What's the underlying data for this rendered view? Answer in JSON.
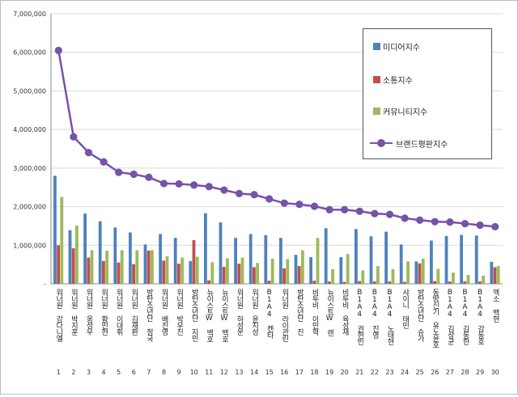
{
  "chart_data": {
    "type": "bar",
    "title": "",
    "xlabel": "",
    "ylabel": "",
    "ylim": [
      0,
      7000000
    ],
    "y_ticks": [
      "-",
      "1,000,000",
      "2,000,000",
      "3,000,000",
      "4,000,000",
      "5,000,000",
      "6,000,000",
      "7,000,000"
    ],
    "grid": true,
    "legend_position": "top-right",
    "categories": [
      "워너원 강다니엘",
      "워너원 박지훈",
      "워너원 옹성우",
      "워너원 황민현",
      "워너원 이대휘",
      "워너원 김재환",
      "방탄소년단 정국",
      "워너원 배진영",
      "워너원 박우진",
      "방탄소년단 지민",
      "뉴이스트W 백호",
      "뉴이스트W 백호",
      "워너원 하성운",
      "워너원 윤지성",
      "B1A4 켄타",
      "워너원 라이관린",
      "방탄소년단 진",
      "비투비 이민혁",
      "뉴이스트W 렌",
      "비투비 육성재",
      "B1A4 권현빈",
      "B1A4 진영",
      "B1A4 노태현",
      "샤이니 태민",
      "방탄소년단 슈가",
      "동방신기 유노윤호",
      "B1A4 김상균",
      "B1A4 김동한",
      "B1A4 강동호",
      "엑소 백현"
    ],
    "category_numbers": [
      "1",
      "2",
      "3",
      "4",
      "5",
      "6",
      "7",
      "8",
      "9",
      "10",
      "11",
      "12",
      "13",
      "14",
      "15",
      "16",
      "17",
      "18",
      "19",
      "20",
      "21",
      "22",
      "23",
      "24",
      "25",
      "26",
      "27",
      "28",
      "29",
      "30"
    ],
    "series": [
      {
        "name": "미디어지수",
        "kind": "bar",
        "color": "#4f81bd",
        "values": [
          2800000,
          1390000,
          1820000,
          1620000,
          1460000,
          1330000,
          1020000,
          1290000,
          1190000,
          590000,
          1830000,
          1590000,
          1190000,
          1290000,
          1260000,
          1190000,
          750000,
          690000,
          1440000,
          690000,
          1420000,
          1230000,
          1350000,
          1020000,
          580000,
          1120000,
          1240000,
          1270000,
          1250000,
          570000
        ]
      },
      {
        "name": "소통지수",
        "kind": "bar",
        "color": "#c0504d",
        "values": [
          1000000,
          920000,
          680000,
          590000,
          550000,
          510000,
          860000,
          600000,
          520000,
          1130000,
          90000,
          440000,
          520000,
          430000,
          80000,
          400000,
          460000,
          80000,
          60000,
          50000,
          70000,
          60000,
          60000,
          50000,
          530000,
          70000,
          60000,
          60000,
          60000,
          430000
        ]
      },
      {
        "name": "커뮤니티지수",
        "kind": "bar",
        "color": "#9bbb59",
        "values": [
          2250000,
          1510000,
          870000,
          860000,
          870000,
          870000,
          870000,
          710000,
          680000,
          700000,
          560000,
          660000,
          680000,
          540000,
          650000,
          640000,
          870000,
          1190000,
          380000,
          770000,
          350000,
          460000,
          380000,
          580000,
          650000,
          390000,
          290000,
          230000,
          210000,
          460000
        ]
      },
      {
        "name": "브랜드평판지수",
        "kind": "line",
        "color": "#7851a9",
        "values": [
          6050000,
          3810000,
          3400000,
          3160000,
          2890000,
          2840000,
          2760000,
          2600000,
          2590000,
          2560000,
          2520000,
          2430000,
          2340000,
          2310000,
          2200000,
          2090000,
          2060000,
          2010000,
          1920000,
          1920000,
          1880000,
          1820000,
          1800000,
          1700000,
          1650000,
          1610000,
          1600000,
          1560000,
          1520000,
          1480000
        ]
      }
    ]
  }
}
